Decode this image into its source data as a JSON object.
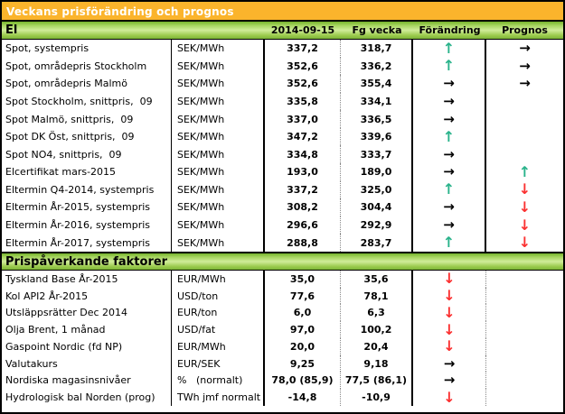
{
  "title": "Veckans prisförändring och prognos",
  "columns": {
    "date": "2014-09-15",
    "prev": "Fg vecka",
    "change": "Förändring",
    "forecast": "Prognos"
  },
  "colors": {
    "title_bar_orange": "#FBB42C",
    "section_header_green": "#8CC63E",
    "arrow_up_green": "#2AB38B",
    "arrow_down_red": "#FB3131",
    "arrow_right_black": "#000000"
  },
  "sections": [
    {
      "header": "El",
      "rows": [
        {
          "label": "Spot, systempris",
          "unit": "SEK/MWh",
          "current": "337,2",
          "prev": "318,7",
          "change": "up",
          "forecast": "right"
        },
        {
          "label": "Spot, områdepris Stockholm",
          "unit": "SEK/MWh",
          "current": "352,6",
          "prev": "336,2",
          "change": "up",
          "forecast": "right"
        },
        {
          "label": "Spot, områdepris Malmö",
          "unit": "SEK/MWh",
          "current": "352,6",
          "prev": "355,4",
          "change": "right",
          "forecast": "right"
        },
        {
          "label": "Spot Stockholm, snittpris,  09",
          "unit": "SEK/MWh",
          "current": "335,8",
          "prev": "334,1",
          "change": "right",
          "forecast": ""
        },
        {
          "label": "Spot Malmö, snittpris,  09",
          "unit": "SEK/MWh",
          "current": "337,0",
          "prev": "336,5",
          "change": "right",
          "forecast": ""
        },
        {
          "label": "Spot DK Öst, snittpris,  09",
          "unit": "SEK/MWh",
          "current": "347,2",
          "prev": "339,6",
          "change": "up",
          "forecast": ""
        },
        {
          "label": "Spot NO4, snittpris,  09",
          "unit": "SEK/MWh",
          "current": "334,8",
          "prev": "333,7",
          "change": "right",
          "forecast": ""
        },
        {
          "label": "Elcertifikat mars-2015",
          "unit": "SEK/MWh",
          "current": "193,0",
          "prev": "189,0",
          "change": "right",
          "forecast": "up"
        },
        {
          "label": "Eltermin Q4-2014, systempris",
          "unit": "SEK/MWh",
          "current": "337,2",
          "prev": "325,0",
          "change": "up",
          "forecast": "down"
        },
        {
          "label": "Eltermin År-2015, systempris",
          "unit": "SEK/MWh",
          "current": "308,2",
          "prev": "304,4",
          "change": "right",
          "forecast": "down"
        },
        {
          "label": "Eltermin År-2016, systempris",
          "unit": "SEK/MWh",
          "current": "296,6",
          "prev": "292,9",
          "change": "right",
          "forecast": "down"
        },
        {
          "label": "Eltermin År-2017, systempris",
          "unit": "SEK/MWh",
          "current": "288,8",
          "prev": "283,7",
          "change": "up",
          "forecast": "down"
        }
      ]
    },
    {
      "header": "Prispåverkande faktorer",
      "rows": [
        {
          "label": "Tyskland Base År-2015",
          "unit": "EUR/MWh",
          "current": "35,0",
          "prev": "35,6",
          "change": "down",
          "forecast": ""
        },
        {
          "label": "Kol API2 År-2015",
          "unit": "USD/ton",
          "current": "77,6",
          "prev": "78,1",
          "change": "down",
          "forecast": ""
        },
        {
          "label": "Utsläppsrätter Dec 2014",
          "unit": "EUR/ton",
          "current": "6,0",
          "prev": "6,3",
          "change": "down",
          "forecast": ""
        },
        {
          "label": "Olja Brent, 1 månad",
          "unit": "USD/fat",
          "current": "97,0",
          "prev": "100,2",
          "change": "down",
          "forecast": ""
        },
        {
          "label": "Gaspoint Nordic (fd NP)",
          "unit": "EUR/MWh",
          "current": "20,0",
          "prev": "20,4",
          "change": "down",
          "forecast": ""
        },
        {
          "label": "Valutakurs",
          "unit": "EUR/SEK",
          "current": "9,25",
          "prev": "9,18",
          "change": "right",
          "forecast": ""
        },
        {
          "label": "Nordiska magasinsnivåer",
          "unit": "%   (normalt)",
          "current": "78,0 (85,9)",
          "prev": "77,5 (86,1)",
          "change": "right",
          "forecast": ""
        },
        {
          "label": "Hydrologisk bal Norden (prog)",
          "unit": "TWh jmf normalt",
          "current": "-14,8",
          "prev": "-10,9",
          "change": "down",
          "forecast": ""
        }
      ]
    }
  ]
}
